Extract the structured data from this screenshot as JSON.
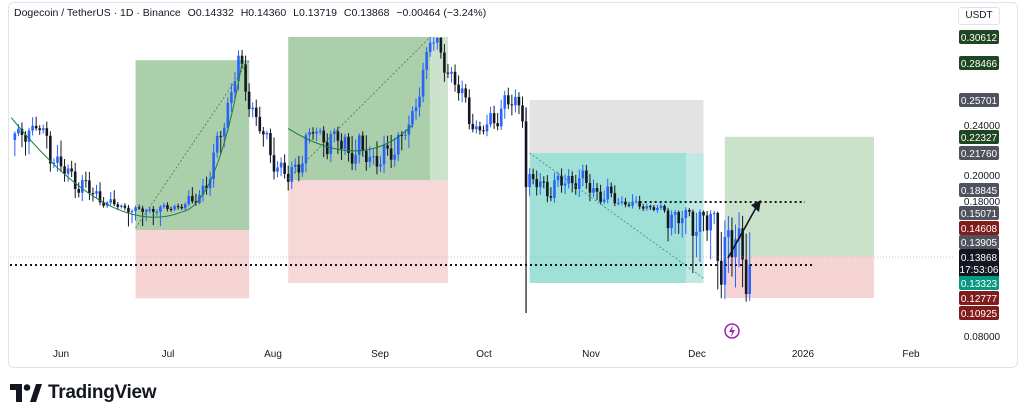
{
  "header": {
    "symbol": "Dogecoin / TetherUS · 1D · Binance",
    "open": "O0.14332",
    "high": "H0.14360",
    "low": "L0.13719",
    "close": "C0.13868",
    "change": "−0.00464 (−3.24%)"
  },
  "currency_button": "USDT",
  "brand": {
    "name": "TradingView",
    "icon": "tradingview-logo-icon"
  },
  "colors": {
    "up": "#2962ff",
    "down": "#131722",
    "green_zone": "#8fbf8f",
    "red_zone": "#f0b8b8",
    "teal_zone": "#7fd6c9",
    "grey_zone": "#dcdcdc"
  },
  "chart_data": {
    "type": "candlestick",
    "x_tick_labels": [
      "Jun",
      "Jul",
      "Aug",
      "Sep",
      "Oct",
      "Nov",
      "Dec",
      "2026",
      "Feb"
    ],
    "y_tick_labels": [
      "0.24000",
      "0.20000",
      "0.18000",
      "0.08000"
    ],
    "price_badges": [
      {
        "value": "0.30612",
        "kind": "green"
      },
      {
        "value": "0.28466",
        "kind": "green"
      },
      {
        "value": "0.25701",
        "kind": "grey"
      },
      {
        "value": "0.22327",
        "kind": "green"
      },
      {
        "value": "0.21760",
        "kind": "grey"
      },
      {
        "value": "0.18845",
        "kind": "grey"
      },
      {
        "value": "0.15071",
        "kind": "grey"
      },
      {
        "value": "0.14608",
        "kind": "red"
      },
      {
        "value": "0.13905",
        "kind": "grey"
      },
      {
        "value": "0.13868",
        "kind": "current",
        "countdown": "17:53:06"
      },
      {
        "value": "0.13323",
        "kind": "teal"
      },
      {
        "value": "0.12777",
        "kind": "red"
      },
      {
        "value": "0.10925",
        "kind": "red"
      }
    ],
    "close_path": [
      {
        "date": "2025-05-18",
        "close": 0.222
      },
      {
        "date": "2025-05-25",
        "close": 0.237
      },
      {
        "date": "2025-06-01",
        "close": 0.205
      },
      {
        "date": "2025-06-08",
        "close": 0.19
      },
      {
        "date": "2025-06-15",
        "close": 0.173
      },
      {
        "date": "2025-06-22",
        "close": 0.156
      },
      {
        "date": "2025-06-29",
        "close": 0.16
      },
      {
        "date": "2025-07-06",
        "close": 0.17
      },
      {
        "date": "2025-07-13",
        "close": 0.198
      },
      {
        "date": "2025-07-21",
        "close": 0.285
      },
      {
        "date": "2025-07-28",
        "close": 0.225
      },
      {
        "date": "2025-08-04",
        "close": 0.196
      },
      {
        "date": "2025-08-11",
        "close": 0.23
      },
      {
        "date": "2025-08-18",
        "close": 0.222
      },
      {
        "date": "2025-08-25",
        "close": 0.215
      },
      {
        "date": "2025-09-01",
        "close": 0.212
      },
      {
        "date": "2025-09-08",
        "close": 0.24
      },
      {
        "date": "2025-09-13",
        "close": 0.306
      },
      {
        "date": "2025-09-20",
        "close": 0.27
      },
      {
        "date": "2025-09-27",
        "close": 0.23
      },
      {
        "date": "2025-10-04",
        "close": 0.255
      },
      {
        "date": "2025-10-09",
        "close": 0.252
      },
      {
        "date": "2025-10-10",
        "close": 0.195
      },
      {
        "date": "2025-10-17",
        "close": 0.19
      },
      {
        "date": "2025-10-24",
        "close": 0.198
      },
      {
        "date": "2025-10-31",
        "close": 0.185
      },
      {
        "date": "2025-11-07",
        "close": 0.175
      },
      {
        "date": "2025-11-14",
        "close": 0.165
      },
      {
        "date": "2025-11-21",
        "close": 0.15
      },
      {
        "date": "2025-11-28",
        "close": 0.15
      },
      {
        "date": "2025-12-05",
        "close": 0.14
      },
      {
        "date": "2025-12-12",
        "close": 0.139
      }
    ],
    "support_level": 0.133,
    "target_level": 0.183
  }
}
